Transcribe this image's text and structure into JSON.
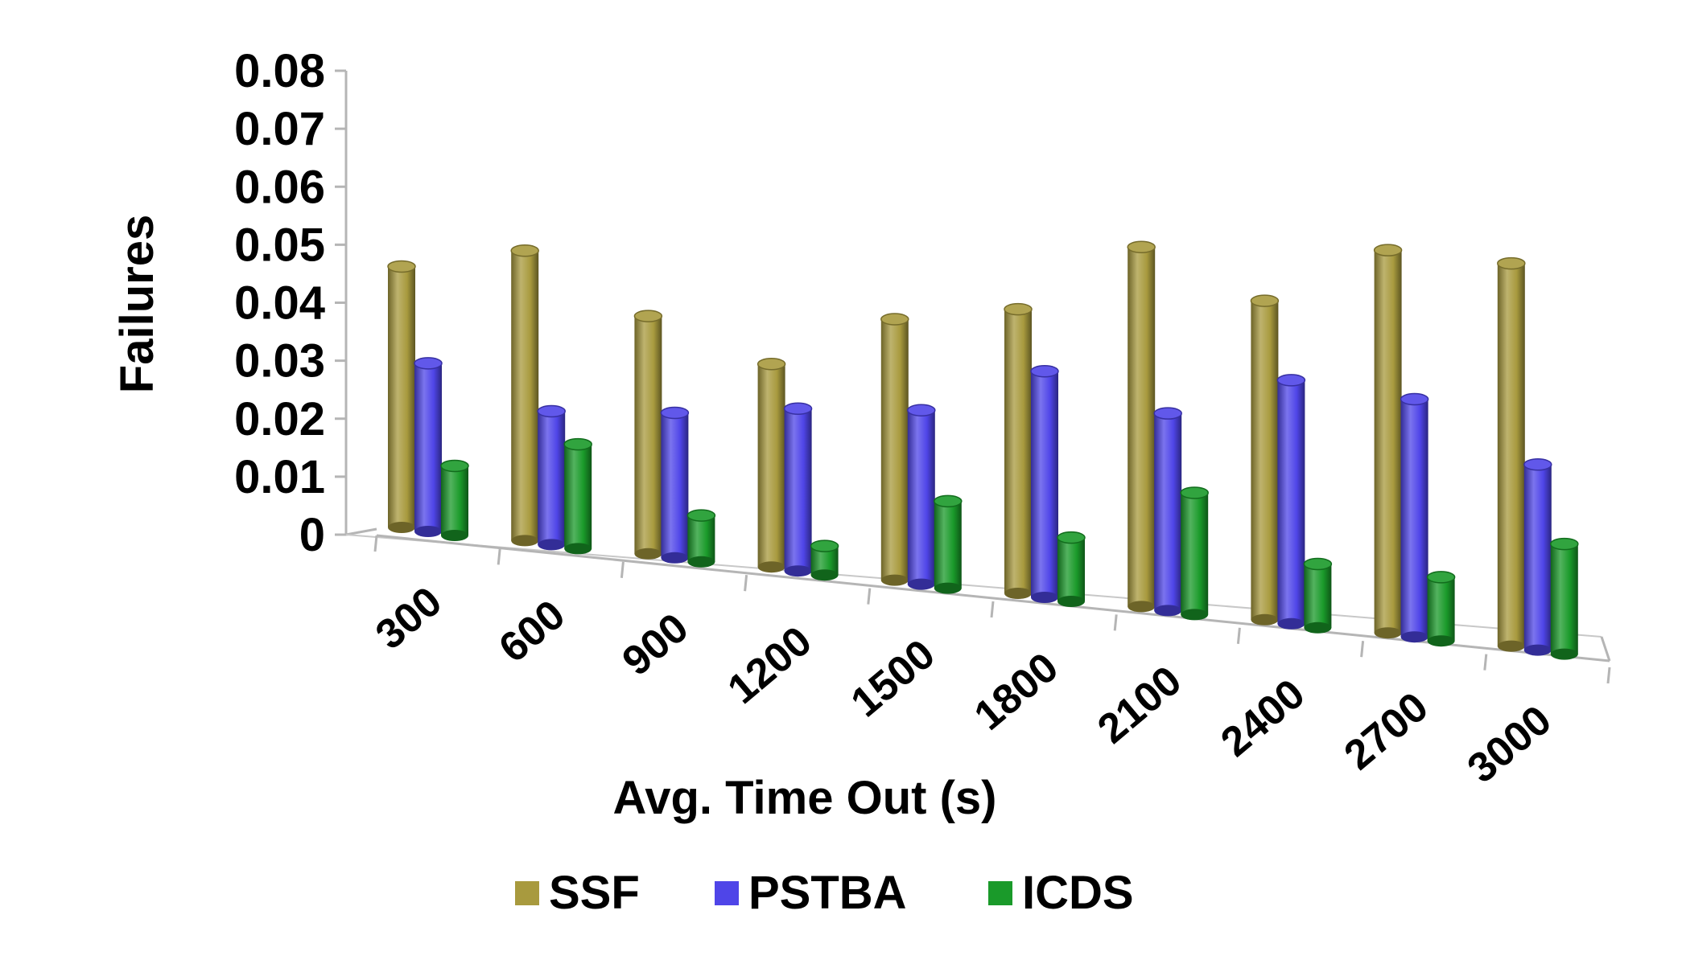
{
  "chart_data": {
    "type": "bar",
    "title": "",
    "xlabel": "Avg. Time Out (s)",
    "ylabel": "Failures",
    "ylim": [
      0,
      0.08
    ],
    "yticks": [
      "0",
      "0.01",
      "0.02",
      "0.03",
      "0.04",
      "0.05",
      "0.06",
      "0.07",
      "0.08"
    ],
    "grid": false,
    "legend_position": "bottom",
    "categories": [
      "300",
      "600",
      "900",
      "1200",
      "1500",
      "1800",
      "2100",
      "2400",
      "2700",
      "3000"
    ],
    "series": [
      {
        "name": "SSF",
        "color": "#a89a3e",
        "values": [
          0.045,
          0.05,
          0.041,
          0.035,
          0.045,
          0.049,
          0.062,
          0.055,
          0.066,
          0.066
        ]
      },
      {
        "name": "PSTBA",
        "color": "#4f45e8",
        "values": [
          0.029,
          0.023,
          0.025,
          0.028,
          0.03,
          0.039,
          0.034,
          0.042,
          0.041,
          0.032
        ]
      },
      {
        "name": "ICDS",
        "color": "#1a9a2a",
        "values": [
          0.012,
          0.018,
          0.008,
          0.005,
          0.015,
          0.011,
          0.021,
          0.011,
          0.011,
          0.019
        ]
      }
    ]
  }
}
